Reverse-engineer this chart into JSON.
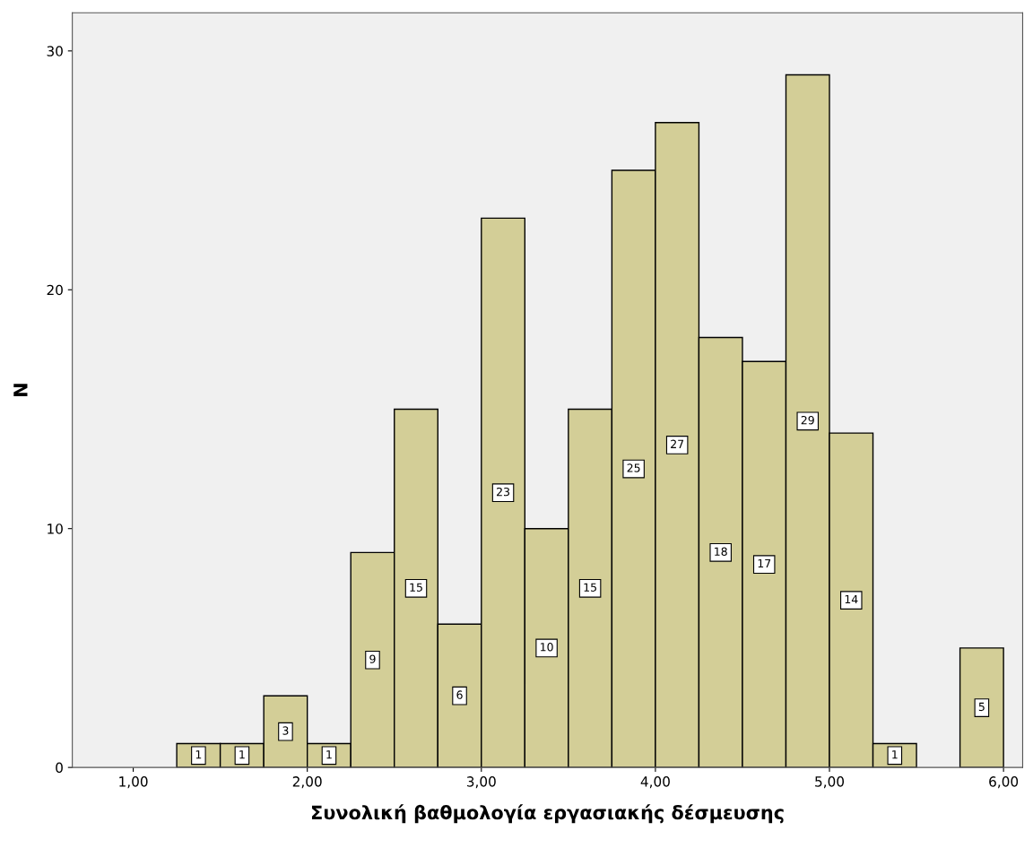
{
  "chart_data": {
    "type": "histogram",
    "xlabel": "Συνολική βαθμολογία εργασιακής δέσμευσης",
    "ylabel": "N",
    "bins": [
      1.25,
      1.5,
      1.75,
      2.0,
      2.25,
      2.5,
      2.75,
      3.0,
      3.25,
      3.5,
      3.75,
      4.0,
      4.25,
      4.5,
      4.75,
      5.0,
      5.25,
      5.5,
      5.75,
      6.0
    ],
    "values": [
      1,
      1,
      3,
      1,
      9,
      15,
      6,
      23,
      10,
      15,
      25,
      27,
      18,
      17,
      29,
      14,
      1,
      0,
      5
    ],
    "value_labels": [
      "1",
      "1",
      "3",
      "1",
      "9",
      "15",
      "6",
      "23",
      "10",
      "15",
      "25",
      "27",
      "18",
      "17",
      "29",
      "14",
      "1",
      null,
      "5"
    ],
    "color": "#d3ce97",
    "xlim": [
      0.65,
      6.11
    ],
    "ylim": [
      0,
      31.6
    ],
    "xticks": [
      {
        "value": 1,
        "label": "1,00"
      },
      {
        "value": 2,
        "label": "2,00"
      },
      {
        "value": 3,
        "label": "3,00"
      },
      {
        "value": 4,
        "label": "4,00"
      },
      {
        "value": 5,
        "label": "5,00"
      },
      {
        "value": 6,
        "label": "6,00"
      }
    ],
    "yticks": [
      0,
      10,
      20,
      30
    ],
    "grid": false
  }
}
